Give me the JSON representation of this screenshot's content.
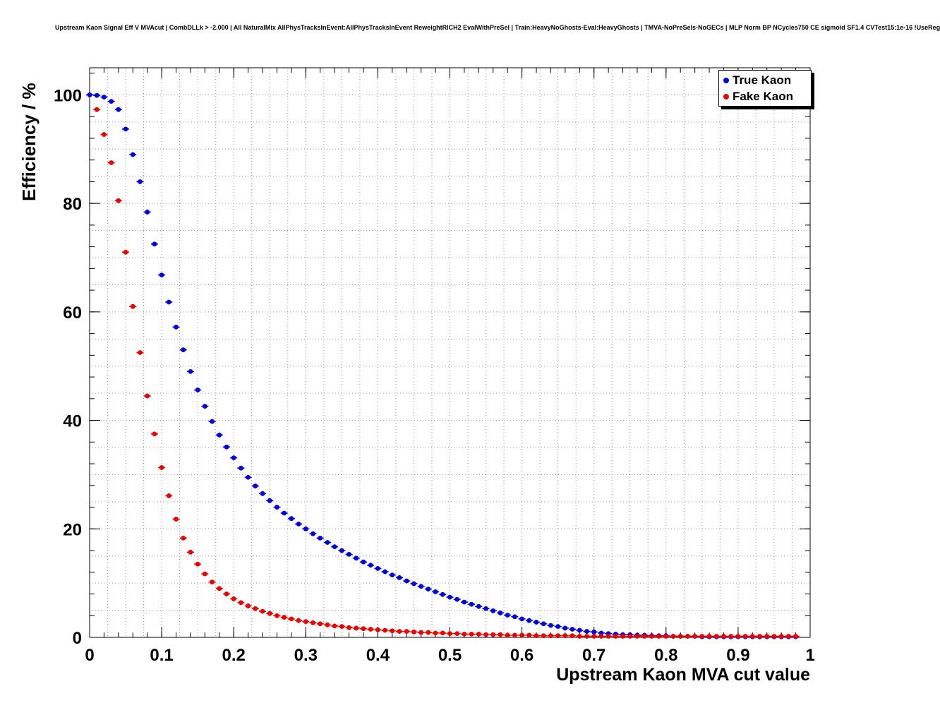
{
  "chart_data": {
    "type": "scatter",
    "title": "Upstream Kaon Signal Eff V MVAcut | CombDLLk > -2.000 | All NaturalMix AllPhysTracksInEvent:AllPhysTracksInEvent ReweightRICH2 EvalWithPreSel | Train:HeavyNoGhosts-Eval:HeavyGhosts | TMVA-NoPreSels-NoGECs | MLP Norm BP NCycles750 CE sigmoid SF1.4 CVTest15:1e-16 !UseReg",
    "xlabel": "Upstream Kaon MVA cut value",
    "ylabel": "Efficiency / %",
    "xlim": [
      0,
      1
    ],
    "ylim": [
      0,
      105
    ],
    "xticks": {
      "values": [
        0,
        0.1,
        0.2,
        0.3,
        0.4,
        0.5,
        0.6,
        0.7,
        0.8,
        0.9,
        1
      ],
      "labels": [
        "0",
        "0.1",
        "0.2",
        "0.3",
        "0.4",
        "0.5",
        "0.6",
        "0.7",
        "0.8",
        "0.9",
        "1"
      ],
      "minor_step": 0.02
    },
    "yticks": {
      "values": [
        0,
        20,
        40,
        60,
        80,
        100
      ],
      "labels": [
        "0",
        "20",
        "40",
        "60",
        "80",
        "100"
      ],
      "minor_step": 4
    },
    "grid": {
      "show": true,
      "x_step": 0.025,
      "y_step": 5,
      "color": "#999999",
      "style": "dotted"
    },
    "legend": {
      "position": "top-right"
    },
    "series": [
      {
        "name": "True Kaon",
        "color": "#0000dd",
        "marker": "circle",
        "x0": 0.0,
        "dx": 0.01,
        "y": [
          100.0,
          99.9,
          99.6,
          98.8,
          97.3,
          93.7,
          89.0,
          84.0,
          78.4,
          72.5,
          66.8,
          61.8,
          57.2,
          53.0,
          49.0,
          45.6,
          42.6,
          39.8,
          37.3,
          35.1,
          33.1,
          31.2,
          29.5,
          27.9,
          26.5,
          25.2,
          24.0,
          22.9,
          21.9,
          20.9,
          20.0,
          19.1,
          18.3,
          17.5,
          16.7,
          16.0,
          15.3,
          14.6,
          13.9,
          13.3,
          12.7,
          12.1,
          11.5,
          11.0,
          10.4,
          9.9,
          9.4,
          8.9,
          8.4,
          7.9,
          7.4,
          7.0,
          6.5,
          6.1,
          5.7,
          5.3,
          4.9,
          4.5,
          4.1,
          3.8,
          3.4,
          3.1,
          2.8,
          2.5,
          2.2,
          2.0,
          1.7,
          1.5,
          1.3,
          1.1,
          1.0,
          0.8,
          0.7,
          0.6,
          0.5,
          0.5,
          0.4,
          0.4,
          0.3,
          0.3,
          0.3,
          0.2,
          0.2,
          0.2,
          0.2,
          0.1,
          0.1,
          0.1,
          0.1,
          0.1,
          0.1,
          0.1,
          0.1,
          0.1,
          0.1,
          0.1,
          0.1,
          0.1,
          0.1
        ]
      },
      {
        "name": "Fake Kaon",
        "color": "#ee0000",
        "marker": "circle",
        "x0": 0.01,
        "dx": 0.01,
        "y": [
          97.3,
          92.7,
          87.5,
          80.5,
          71.0,
          61.0,
          52.5,
          44.5,
          37.5,
          31.3,
          26.1,
          21.8,
          18.3,
          15.7,
          13.5,
          11.7,
          10.2,
          9.0,
          8.0,
          7.1,
          6.4,
          5.8,
          5.3,
          4.8,
          4.4,
          4.0,
          3.7,
          3.4,
          3.1,
          2.9,
          2.7,
          2.5,
          2.3,
          2.1,
          2.0,
          1.8,
          1.7,
          1.6,
          1.5,
          1.4,
          1.3,
          1.2,
          1.1,
          1.1,
          1.0,
          0.9,
          0.9,
          0.8,
          0.8,
          0.7,
          0.7,
          0.6,
          0.6,
          0.6,
          0.5,
          0.5,
          0.5,
          0.4,
          0.4,
          0.4,
          0.4,
          0.3,
          0.3,
          0.3,
          0.3,
          0.3,
          0.3,
          0.2,
          0.2,
          0.2,
          0.2,
          0.2,
          0.2,
          0.2,
          0.2,
          0.2,
          0.2,
          0.2,
          0.2,
          0.2,
          0.2,
          0.2,
          0.2,
          0.2,
          0.2,
          0.2,
          0.2,
          0.2,
          0.2,
          0.2,
          0.2,
          0.2,
          0.2,
          0.2,
          0.2,
          0.2,
          0.2,
          0.2
        ]
      }
    ]
  }
}
